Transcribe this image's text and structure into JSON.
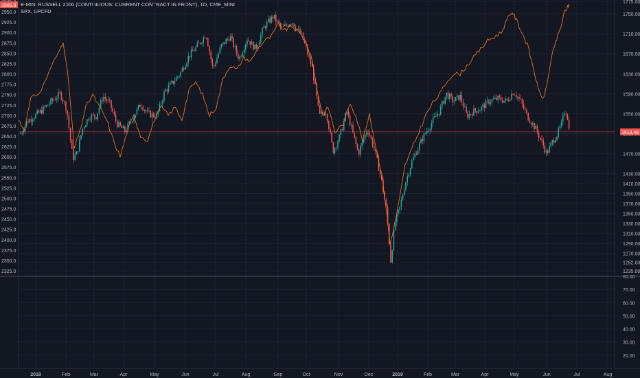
{
  "legend": {
    "line1": "E-MINI RUSSELL 2000 (CONTINUOUS: CURRENT CONTRACT IN FRONT), 1D, CME_MINI",
    "line2": "SPX, SPCFD"
  },
  "badges": {
    "left_price": "2966.9",
    "right_price": "1513.48"
  },
  "colors": {
    "background": "#131722",
    "grid": "#1e2230",
    "up": "#26a69a",
    "down": "#ef5350",
    "overlay": "#e8711c",
    "axis_text": "#b2b5be",
    "price_line": "#ef5350"
  },
  "chart_data": [
    {
      "type": "candlestick",
      "title": "E-MINI RUSSELL 2000 (CONTINUOUS: CURRENT CONTRACT IN FRONT), 1D, CME_MINI",
      "y_axis": "right",
      "ylim": [
        1235,
        1775
      ],
      "right_ticks": [
        1235.0,
        1252.0,
        1270.0,
        1290.0,
        1310.0,
        1330.0,
        1350.0,
        1370.0,
        1390.0,
        1410.0,
        1430.0,
        1470.0,
        1510.0,
        1550.0,
        1590.0,
        1630.0,
        1670.0,
        1710.0,
        1750.0,
        1775.0
      ],
      "x_ticks": [
        "2018",
        "Feb",
        "Mar",
        "Apr",
        "May",
        "Jun",
        "Jul",
        "Aug",
        "Sep",
        "Oct",
        "Nov",
        "Dec",
        "2019",
        "Feb",
        "Mar",
        "Apr",
        "May",
        "Jun",
        "Jul",
        "Aug"
      ],
      "last_price": 1513.48,
      "approx_closes_by_month": {
        "labels": [
          "2018-01",
          "2018-02",
          "2018-03",
          "2018-04",
          "2018-05",
          "2018-06",
          "2018-07",
          "2018-08",
          "2018-09",
          "2018-10",
          "2018-11",
          "2018-12",
          "2019-01",
          "2019-02",
          "2019-03",
          "2019-04",
          "2019-05",
          "2019-06"
        ],
        "values": [
          1575,
          1510,
          1540,
          1540,
          1625,
          1660,
          1665,
          1715,
          1690,
          1520,
          1530,
          1340,
          1500,
          1575,
          1540,
          1580,
          1480,
          1550
        ]
      },
      "series": [
        {
          "name": "SPX, SPCFD",
          "color": "#e8711c",
          "y_axis": "left",
          "ylim_left": [
            2325,
            2975
          ],
          "left_ticks": [
            2325.0,
            2350.0,
            2375.0,
            2400.0,
            2425.0,
            2450.0,
            2475.0,
            2500.0,
            2525.0,
            2550.0,
            2575.0,
            2600.0,
            2625.0,
            2650.0,
            2675.0,
            2700.0,
            2725.0,
            2750.0,
            2775.0,
            2800.0,
            2825.0,
            2850.0,
            2875.0,
            2900.0,
            2925.0,
            2950.0,
            2975.0
          ],
          "last_value": 2966.9
        }
      ]
    },
    {
      "type": "line",
      "pane": "indicator",
      "ylim": [
        10,
        80
      ],
      "ticks": [
        80.0,
        70.0,
        60.0,
        50.0,
        40.0,
        30.0,
        20.0
      ]
    }
  ]
}
